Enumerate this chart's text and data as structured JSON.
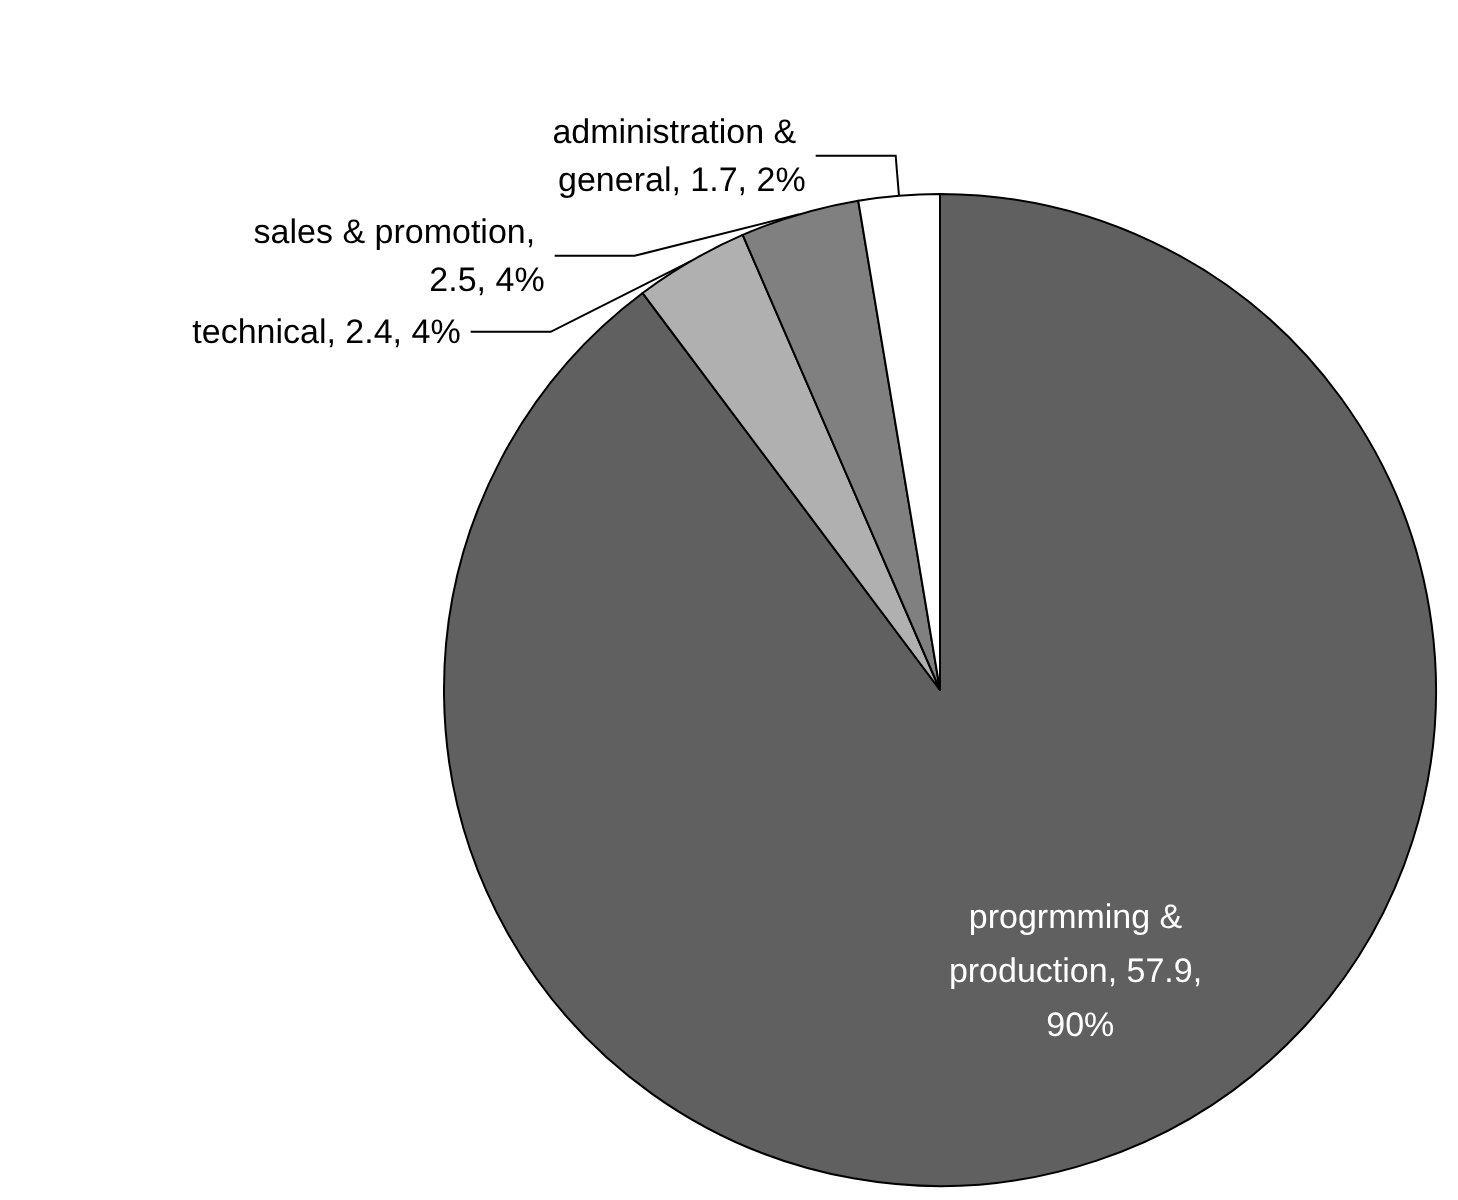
{
  "chart_data": {
    "type": "pie",
    "categories": [
      "progrmming & production",
      "technical",
      "sales & promotion",
      "administration & general"
    ],
    "values": [
      57.9,
      2.4,
      2.5,
      1.7
    ],
    "value_labels": [
      ", 57.9, 90%",
      ", 2.4, 4%",
      ", 2.5, 4%",
      ", 1.7, 2%"
    ],
    "colors": [
      "#606060",
      "#b0b0b0",
      "#808080",
      "#ffffff"
    ],
    "legend": false
  }
}
